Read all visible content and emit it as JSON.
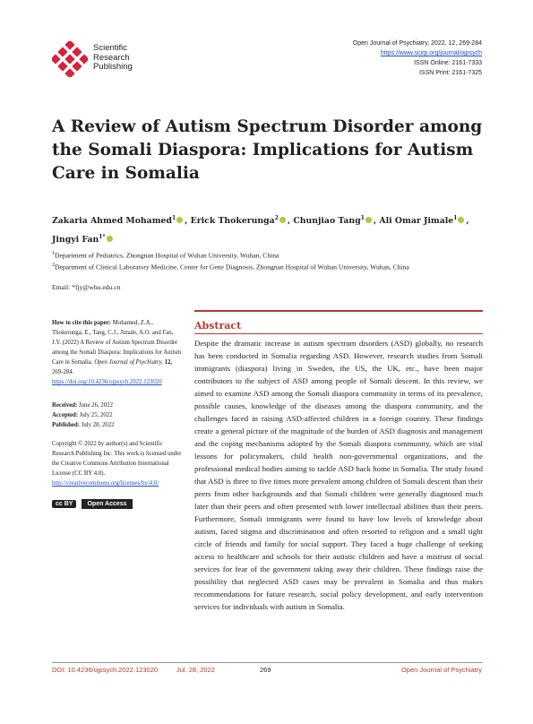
{
  "publisher": {
    "name_line1": "Scientific",
    "name_line2": "Research",
    "name_line3": "Publishing",
    "logo_color": "#d6223b"
  },
  "journal": {
    "citation": "Open Journal of Psychiatry, 2022, 12, 269-284",
    "url": "https://www.scirp.org/journal/ojpsych",
    "issn_online": "ISSN Online: 2161-7333",
    "issn_print": "ISSN Print: 2161-7325"
  },
  "title": "A Review of Autism Spectrum Disorder among the Somali Diaspora: Implications for Autism Care in Somalia",
  "authors": [
    {
      "name": "Zakaria Ahmed Mohamed",
      "sup": "1"
    },
    {
      "name": "Erick Thokerunga",
      "sup": "2"
    },
    {
      "name": "Chunjiao Tang",
      "sup": "1"
    },
    {
      "name": "Ali Omar Jimale",
      "sup": "1"
    },
    {
      "name": "Jingyi Fan",
      "sup": "1*"
    }
  ],
  "affiliations": [
    {
      "sup": "1",
      "text": "Department of Pediatrics, Zhongnan Hospital of Wuhan University, Wuhan, China"
    },
    {
      "sup": "2",
      "text": "Department of Clinical Laboratory Medicine, Center for Gene Diagnosis, Zhongnan Hospital of Wuhan University, Wuhan, China"
    }
  ],
  "email": "Email: *fjy@whu.edu.cn",
  "sidebar": {
    "cite_label": "How to cite this paper:",
    "cite_text": "Mohamed, Z.A., Thokerunga, E., Tang, C.J., Jimale, A.O. and Fan, J.Y. (2022) A Review of Autism Spectrum Disorder among the Somali Diaspora: Implications for Autism Care in Somalia.",
    "cite_journal": "Open Journal of Psychiatry,",
    "cite_volume": "12,",
    "cite_pages": "269-284.",
    "doi_link": "https://doi.org/10.4236/ojpsych.2022.123020",
    "received_label": "Received:",
    "received_date": "June 26, 2022",
    "accepted_label": "Accepted:",
    "accepted_date": "July 25, 2022",
    "published_label": "Published:",
    "published_date": "July 28, 2022",
    "copyright": "Copyright © 2022 by author(s) and Scientific Research Publishing Inc. This work is licensed under the Creative Commons Attribution International License (CC BY 4.0).",
    "license_link": "http://creativecommons.org/licenses/by/4.0/",
    "cc_badge": "cc BY",
    "open_access": "Open Access"
  },
  "abstract": {
    "heading": "Abstract",
    "body": "Despite the dramatic increase in autism spectrum disorders (ASD) globally, no research has been conducted in Somalia regarding ASD. However, research studies from Somali immigrants (diaspora) living in Sweden, the US, the UK, etc., have been major contributors to the subject of ASD among people of Somali descent. In this review, we aimed to examine ASD among the Somali diaspora community in terms of its prevalence, possible causes, knowledge of the diseases among the diaspora community, and the challenges faced in raising ASD-affected children in a foreign country. These findings create a general picture of the magnitude of the burden of ASD diagnosis and management and the coping mechanisms adopted by the Somali diaspora community, which are vital lessons for policymakers, child health non-governmental organizations, and the professional medical bodies aiming to tackle ASD back home in Somalia. The study found that ASD is three to five times more prevalent among children of Somali descent than their peers from other backgrounds and that Somali children were generally diagnosed much later than their peers and often presented with lower intellectual abilities than their peers. Furthermore, Somali immigrants were found to have low levels of knowledge about autism, faced stigma and discrimination and often resorted to religion and a small tight circle of friends and family for social support. They faced a huge challenge of seeking access to healthcare and schools for their autistic children and have a mistrust of social services for fear of the government taking away their children. These findings raise the possibility that neglected ASD cases may be prevalent in Somalia and thus makes recommendations for future research, social policy development, and early intervention services for individuals with autism in Somalia."
  },
  "footer": {
    "doi": "DOI: 10.4236/ojpsych.2022.123020",
    "date": "Jul. 28, 2022",
    "page": "269",
    "journal": "Open Journal of Psychiatry"
  }
}
